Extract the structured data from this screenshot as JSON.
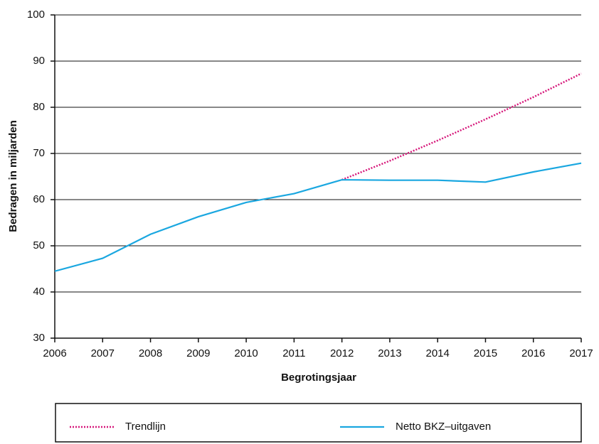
{
  "chart_data": {
    "type": "line",
    "x_label": "Begrotingsjaar",
    "y_label": "Bedragen in miljarden",
    "x": [
      2006,
      2007,
      2008,
      2009,
      2010,
      2011,
      2012,
      2013,
      2014,
      2015,
      2016,
      2017
    ],
    "xlim": [
      2006,
      2017
    ],
    "xticks": [
      2006,
      2007,
      2008,
      2009,
      2010,
      2011,
      2012,
      2013,
      2014,
      2015,
      2016,
      2017
    ],
    "ylim": [
      30,
      100
    ],
    "yticks": [
      30,
      40,
      50,
      60,
      70,
      80,
      90,
      100
    ],
    "grid": true,
    "legend": "bottom",
    "series": [
      {
        "name": "Trendlijn",
        "color": "#d6177a",
        "dashed": true,
        "values": [
          null,
          null,
          null,
          null,
          null,
          null,
          64.3,
          68.4,
          72.8,
          77.4,
          82.2,
          87.3
        ]
      },
      {
        "name": "Netto BKZ–uitgaven",
        "color": "#1aa7e0",
        "dashed": false,
        "values": [
          44.5,
          47.3,
          52.5,
          56.3,
          59.4,
          61.3,
          64.3,
          64.2,
          64.2,
          63.8,
          66.0,
          67.9
        ]
      }
    ]
  }
}
